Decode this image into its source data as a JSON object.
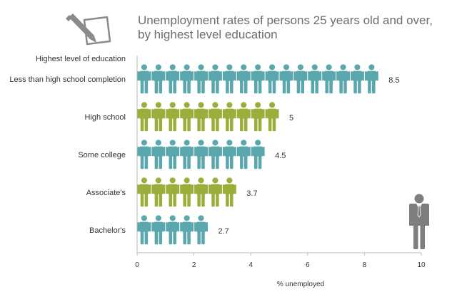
{
  "chart_data": {
    "type": "bar",
    "title_line1": "Unemployment rates of persons 25 years old and over,",
    "title_line2": "by highest level education",
    "category_header": "Highest level of education",
    "categories": [
      "Less than high school completion",
      "High school",
      "Some college",
      "Associate's",
      "Bachelor's"
    ],
    "values": [
      8.5,
      5,
      4.5,
      3.7,
      2.7
    ],
    "value_labels": [
      "8.5",
      "5",
      "4.5",
      "3.7",
      "2.7"
    ],
    "xlabel": "% unemployed",
    "xlim": [
      0,
      10
    ],
    "xticks": [
      "0",
      "2",
      "4",
      "6",
      "8",
      "10"
    ],
    "grid": false,
    "icon": "person-icon",
    "colors": [
      "#5aa7ad",
      "#9aaf3b",
      "#5aa7ad",
      "#9aaf3b",
      "#5aa7ad"
    ]
  }
}
